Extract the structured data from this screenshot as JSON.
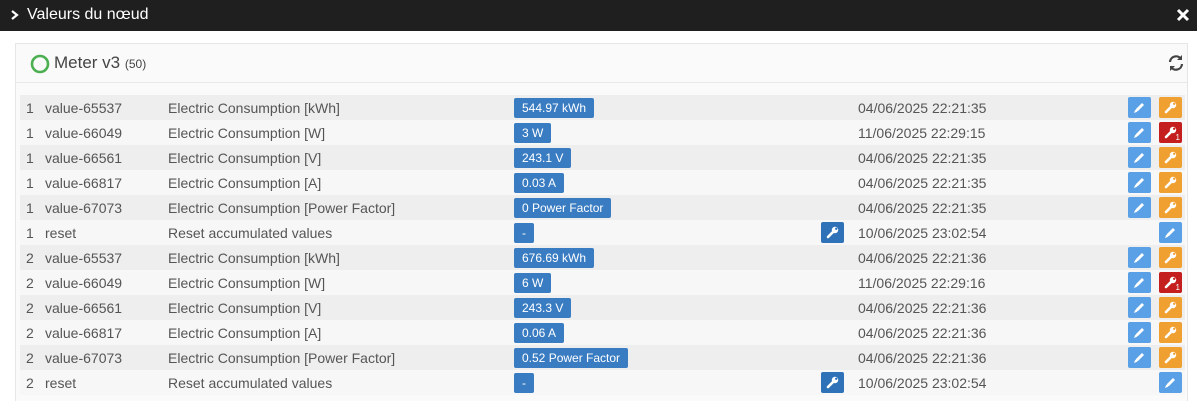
{
  "window": {
    "title": "Valeurs du nœud"
  },
  "node": {
    "name": "Meter v3",
    "count": "(50)",
    "status_color": "#4caf50"
  },
  "rows": [
    {
      "instance": "1",
      "id": "value-65537",
      "label": "Electric Consumption [kWh]",
      "value": "544.97 kWh",
      "updated": "04/06/2025 22:21:35",
      "settable": false,
      "config_alert": false
    },
    {
      "instance": "1",
      "id": "value-66049",
      "label": "Electric Consumption [W]",
      "value": "3 W",
      "updated": "11/06/2025 22:29:15",
      "settable": false,
      "config_alert": true,
      "config_alert_count": "1"
    },
    {
      "instance": "1",
      "id": "value-66561",
      "label": "Electric Consumption [V]",
      "value": "243.1 V",
      "updated": "04/06/2025 22:21:35",
      "settable": false,
      "config_alert": false
    },
    {
      "instance": "1",
      "id": "value-66817",
      "label": "Electric Consumption [A]",
      "value": "0.03 A",
      "updated": "04/06/2025 22:21:35",
      "settable": false,
      "config_alert": false
    },
    {
      "instance": "1",
      "id": "value-67073",
      "label": "Electric Consumption [Power Factor]",
      "value": "0 Power Factor",
      "updated": "04/06/2025 22:21:35",
      "settable": false,
      "config_alert": false
    },
    {
      "instance": "1",
      "id": "reset",
      "label": "Reset accumulated values",
      "value": "-",
      "updated": "10/06/2025 23:02:54",
      "settable": true,
      "config_alert": false
    },
    {
      "instance": "2",
      "id": "value-65537",
      "label": "Electric Consumption [kWh]",
      "value": "676.69 kWh",
      "updated": "04/06/2025 22:21:36",
      "settable": false,
      "config_alert": false
    },
    {
      "instance": "2",
      "id": "value-66049",
      "label": "Electric Consumption [W]",
      "value": "6 W",
      "updated": "11/06/2025 22:29:16",
      "settable": false,
      "config_alert": true,
      "config_alert_count": "1"
    },
    {
      "instance": "2",
      "id": "value-66561",
      "label": "Electric Consumption [V]",
      "value": "243.3 V",
      "updated": "04/06/2025 22:21:36",
      "settable": false,
      "config_alert": false
    },
    {
      "instance": "2",
      "id": "value-66817",
      "label": "Electric Consumption [A]",
      "value": "0.06 A",
      "updated": "04/06/2025 22:21:36",
      "settable": false,
      "config_alert": false
    },
    {
      "instance": "2",
      "id": "value-67073",
      "label": "Electric Consumption [Power Factor]",
      "value": "0.52 Power Factor",
      "updated": "04/06/2025 22:21:36",
      "settable": false,
      "config_alert": false
    },
    {
      "instance": "2",
      "id": "reset",
      "label": "Reset accumulated values",
      "value": "-",
      "updated": "10/06/2025 23:02:54",
      "settable": true,
      "config_alert": false
    }
  ],
  "icons": {
    "title_chevron": "chevron-right-icon",
    "close": "close-icon",
    "refresh": "refresh-icon",
    "edit": "pencil-icon",
    "config": "wrench-icon",
    "status": "status-ring-icon"
  },
  "colors": {
    "value_badge": "#3a7cc2",
    "edit_button": "#5aa0e6",
    "config_button": "#f0a030",
    "config_alert_button": "#c41e1e",
    "set_button": "#2f72b8"
  }
}
